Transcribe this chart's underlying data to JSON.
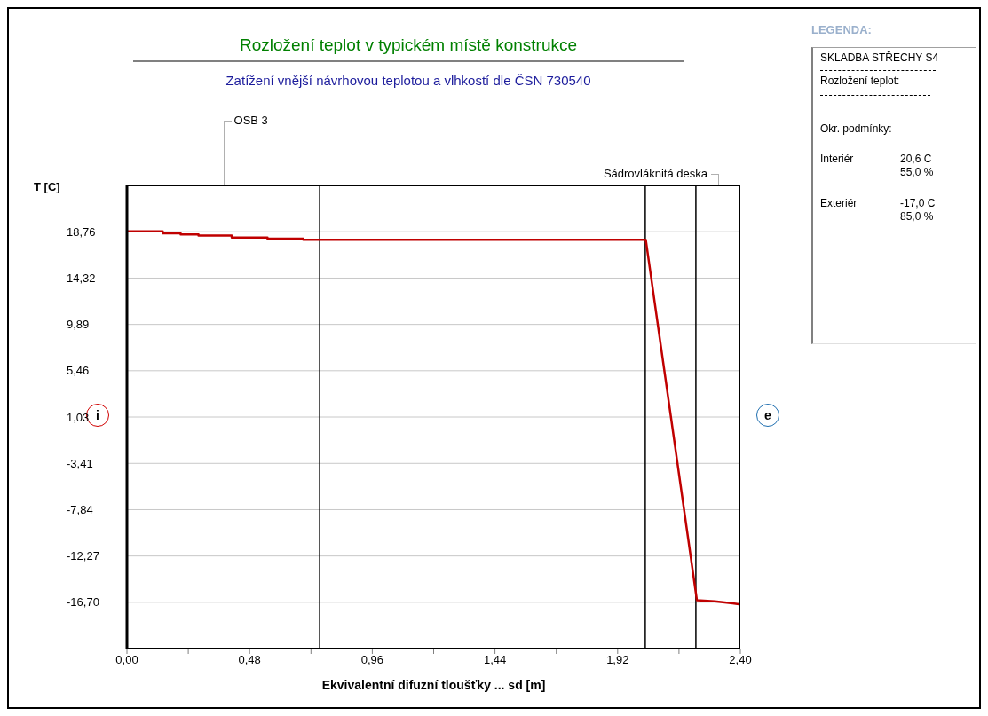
{
  "chart_data": [
    {
      "type": "line",
      "title": "Rozložení teplot v typickém místě konstrukce",
      "subtitle": "Zatížení vnější návrhovou teplotou a vlhkostí dle ČSN 730540",
      "xlabel": "Ekvivalentní difuzní tloušťky ... sd [m]",
      "ylabel": "T [C]",
      "series": [
        {
          "color": "#c00000",
          "x": [
            0,
            0.14,
            0.14,
            0.21,
            0.21,
            0.28,
            0.28,
            0.41,
            0.41,
            0.55,
            0.55,
            0.69,
            0.69,
            2.03,
            2.23,
            2.3,
            2.37,
            2.4
          ],
          "values": [
            18.8,
            18.8,
            18.6,
            18.6,
            18.5,
            18.5,
            18.4,
            18.4,
            18.2,
            18.2,
            18.1,
            18.1,
            18.0,
            18.0,
            -16.5,
            -16.6,
            -16.8,
            -16.9
          ]
        }
      ],
      "xlim": [
        0,
        2.4
      ],
      "xticks": [
        {
          "value": 0,
          "label": "0,00"
        },
        {
          "value": 0.24,
          "label": null
        },
        {
          "value": 0.48,
          "label": "0,48"
        },
        {
          "value": 0.72,
          "label": null
        },
        {
          "value": 0.96,
          "label": "0,96"
        },
        {
          "value": 1.2,
          "label": null
        },
        {
          "value": 1.44,
          "label": "1,44"
        },
        {
          "value": 1.68,
          "label": null
        },
        {
          "value": 1.92,
          "label": "1,92"
        },
        {
          "value": 2.16,
          "label": null
        },
        {
          "value": 2.4,
          "label": "2,40"
        }
      ],
      "ylim": [
        -21.13,
        23.19
      ],
      "yticks": [
        {
          "value": 18.76,
          "label": "18,76"
        },
        {
          "value": 14.32,
          "label": "14,32"
        },
        {
          "value": 9.89,
          "label": "9,89"
        },
        {
          "value": 5.46,
          "label": "5,46"
        },
        {
          "value": 1.03,
          "label": "1,03"
        },
        {
          "value": -3.41,
          "label": "-3,41"
        },
        {
          "value": -7.84,
          "label": "-7,84"
        },
        {
          "value": -12.27,
          "label": "-12,27"
        },
        {
          "value": -16.7,
          "label": "-16,70"
        }
      ],
      "grid": "y",
      "marker": "none",
      "line_style": "solid",
      "legend": false,
      "ref_lines": [
        {
          "axis": "x",
          "value": 0.754,
          "label": null,
          "color": "#000000"
        },
        {
          "axis": "x",
          "value": 2.028,
          "label": null,
          "color": "#000000"
        },
        {
          "axis": "x",
          "value": 2.226,
          "label": null,
          "color": "#000000"
        }
      ],
      "annotations": [
        "OSB 3",
        "Sádrovláknitá deska",
        "i",
        "e"
      ]
    },
    {
      "type": "other",
      "title": "LEGENDA:",
      "annotations": [
        "SKLADBA STŘECHY S4",
        "Rozložení teplot:",
        "Okr. podmínky:",
        "Interiér",
        "20,6 C",
        "55,0 %",
        "Exteriér",
        "-17,0 C",
        "85,0 %"
      ]
    }
  ]
}
